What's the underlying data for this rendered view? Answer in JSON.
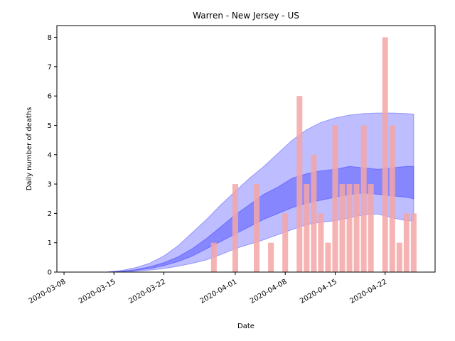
{
  "chart_data": {
    "type": "bar",
    "title": "Warren - New Jersey - US",
    "xlabel": "Date",
    "ylabel": "Daily number of deaths",
    "xlim": [
      "2020-03-07",
      "2020-04-29"
    ],
    "ylim": [
      0,
      8.4
    ],
    "yticks": [
      0,
      1,
      2,
      3,
      4,
      5,
      6,
      7,
      8
    ],
    "xticks": [
      "2020-03-08",
      "2020-03-15",
      "2020-03-22",
      "2020-04-01",
      "2020-04-08",
      "2020-04-15",
      "2020-04-22"
    ],
    "grid": false,
    "series": [
      {
        "kind": "bar",
        "color": "#f4a6a6",
        "points": [
          {
            "x": "2020-03-29",
            "y": 1
          },
          {
            "x": "2020-04-01",
            "y": 3
          },
          {
            "x": "2020-04-04",
            "y": 3
          },
          {
            "x": "2020-04-06",
            "y": 1
          },
          {
            "x": "2020-04-08",
            "y": 2
          },
          {
            "x": "2020-04-10",
            "y": 6
          },
          {
            "x": "2020-04-11",
            "y": 3
          },
          {
            "x": "2020-04-12",
            "y": 4
          },
          {
            "x": "2020-04-13",
            "y": 2
          },
          {
            "x": "2020-04-14",
            "y": 1
          },
          {
            "x": "2020-04-15",
            "y": 5
          },
          {
            "x": "2020-04-16",
            "y": 3
          },
          {
            "x": "2020-04-17",
            "y": 3
          },
          {
            "x": "2020-04-18",
            "y": 3
          },
          {
            "x": "2020-04-19",
            "y": 5
          },
          {
            "x": "2020-04-20",
            "y": 3
          },
          {
            "x": "2020-04-22",
            "y": 8
          },
          {
            "x": "2020-04-23",
            "y": 5
          },
          {
            "x": "2020-04-24",
            "y": 1
          },
          {
            "x": "2020-04-25",
            "y": 2
          },
          {
            "x": "2020-04-26",
            "y": 2
          }
        ]
      },
      {
        "kind": "band",
        "color": "#7b7bff",
        "opacity": 0.5,
        "x": [
          "2020-03-14",
          "2020-03-16",
          "2020-03-18",
          "2020-03-20",
          "2020-03-22",
          "2020-03-24",
          "2020-03-26",
          "2020-03-28",
          "2020-03-30",
          "2020-04-01",
          "2020-04-03",
          "2020-04-05",
          "2020-04-07",
          "2020-04-09",
          "2020-04-11",
          "2020-04-13",
          "2020-04-15",
          "2020-04-17",
          "2020-04-19",
          "2020-04-21",
          "2020-04-23",
          "2020-04-25",
          "2020-04-26"
        ],
        "lower": [
          0,
          0.01,
          0.03,
          0.07,
          0.12,
          0.2,
          0.3,
          0.42,
          0.6,
          0.8,
          0.95,
          1.1,
          1.28,
          1.45,
          1.62,
          1.7,
          1.75,
          1.85,
          1.95,
          1.98,
          1.85,
          1.75,
          1.75
        ],
        "upper": [
          0,
          0.05,
          0.15,
          0.3,
          0.55,
          0.9,
          1.35,
          1.8,
          2.3,
          2.75,
          3.2,
          3.6,
          4.05,
          4.5,
          4.85,
          5.1,
          5.25,
          5.35,
          5.4,
          5.42,
          5.42,
          5.4,
          5.38
        ]
      },
      {
        "kind": "band",
        "color": "#5a5aff",
        "opacity": 0.55,
        "x": [
          "2020-03-14",
          "2020-03-16",
          "2020-03-18",
          "2020-03-20",
          "2020-03-22",
          "2020-03-24",
          "2020-03-26",
          "2020-03-28",
          "2020-03-30",
          "2020-04-01",
          "2020-04-03",
          "2020-04-05",
          "2020-04-07",
          "2020-04-09",
          "2020-04-11",
          "2020-04-13",
          "2020-04-15",
          "2020-04-17",
          "2020-04-19",
          "2020-04-21",
          "2020-04-23",
          "2020-04-25",
          "2020-04-26"
        ],
        "lower": [
          0,
          0.02,
          0.06,
          0.12,
          0.22,
          0.36,
          0.55,
          0.8,
          1.05,
          1.3,
          1.55,
          1.8,
          2.0,
          2.2,
          2.35,
          2.45,
          2.55,
          2.65,
          2.7,
          2.65,
          2.6,
          2.55,
          2.5
        ],
        "upper": [
          0,
          0.03,
          0.08,
          0.18,
          0.32,
          0.52,
          0.8,
          1.15,
          1.55,
          1.95,
          2.3,
          2.65,
          2.9,
          3.2,
          3.35,
          3.45,
          3.5,
          3.6,
          3.55,
          3.5,
          3.55,
          3.6,
          3.6
        ]
      }
    ]
  }
}
